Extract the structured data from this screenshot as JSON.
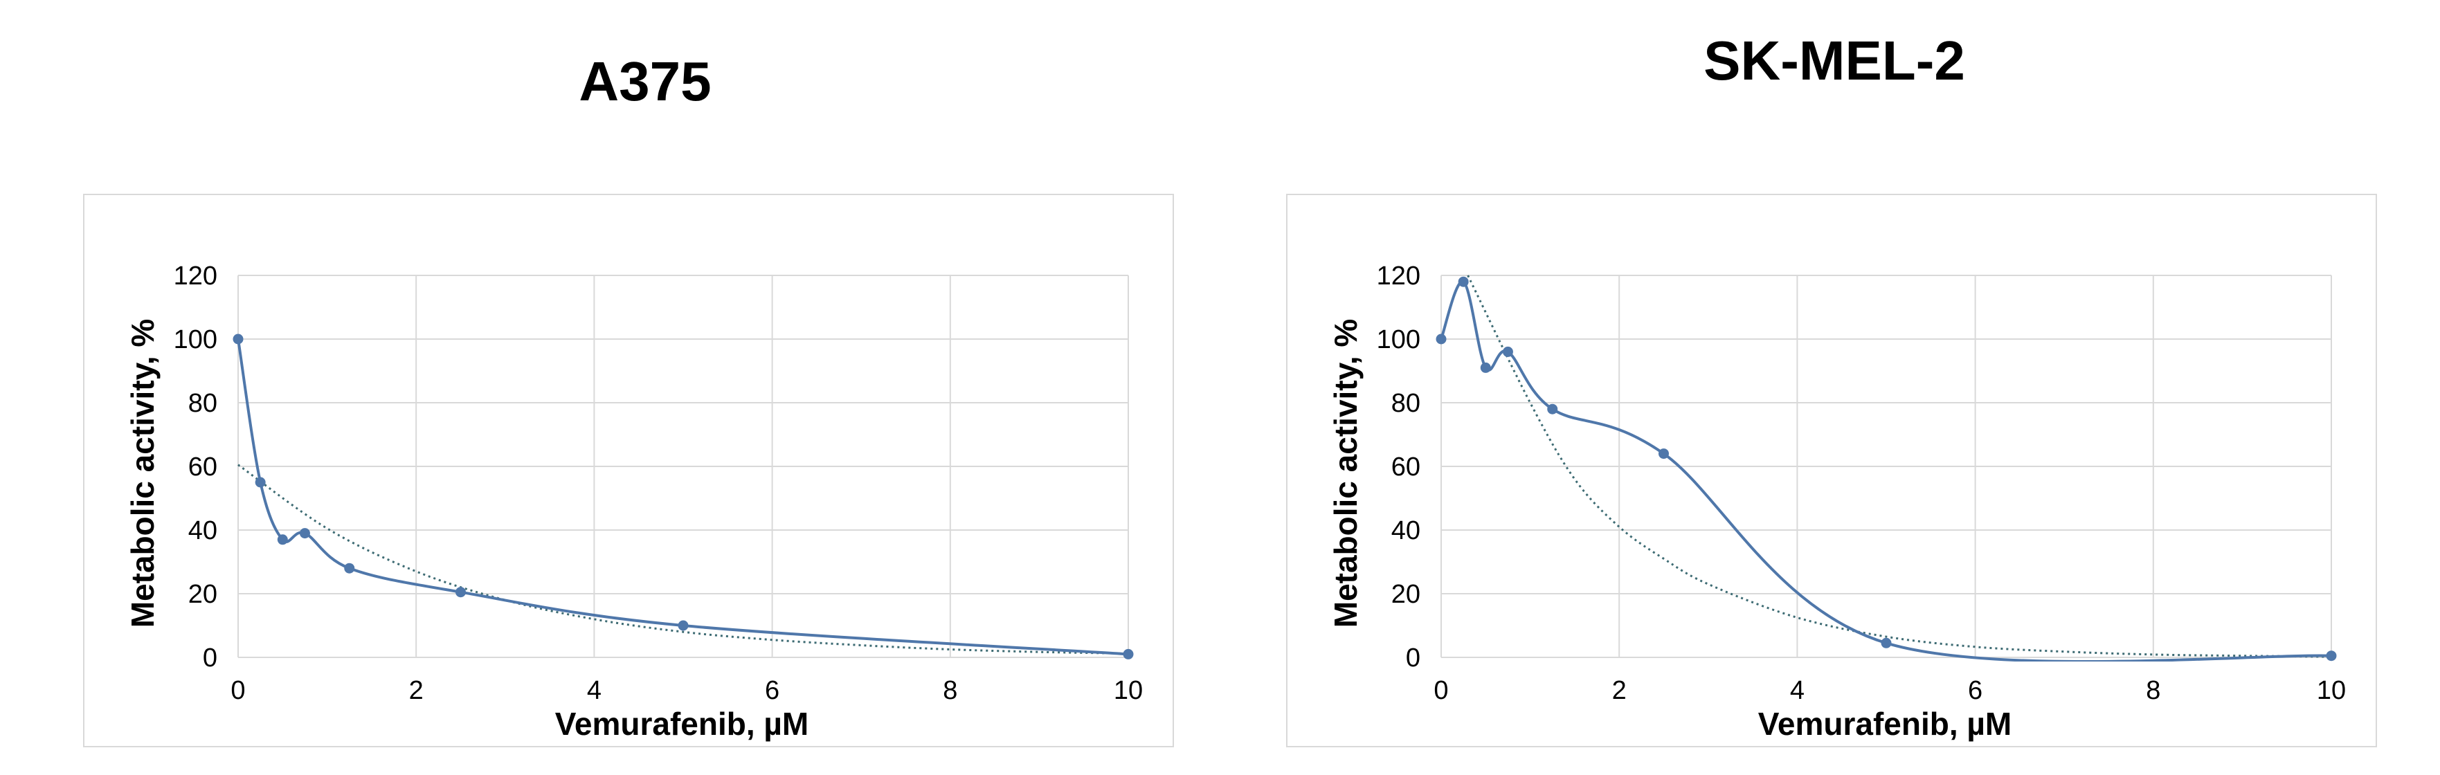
{
  "chart_data": [
    {
      "type": "line",
      "title": "A375",
      "xlabel": "Vemurafenib, µM",
      "ylabel": "Metabolic activity, %",
      "xlim": [
        0,
        10
      ],
      "ylim": [
        0,
        120
      ],
      "x_ticks": [
        "0",
        "2",
        "4",
        "6",
        "8",
        "10"
      ],
      "y_ticks": [
        "0",
        "20",
        "40",
        "60",
        "80",
        "100",
        "120"
      ],
      "grid": true,
      "colors": {
        "series": "#4f77aa",
        "trend": "#3d6b73"
      },
      "series": [
        {
          "x": [
            0,
            0.25,
            0.5,
            0.75,
            1.25,
            2.5,
            5,
            10
          ],
          "values": [
            100,
            55,
            37,
            39,
            28,
            20.5,
            10,
            1
          ]
        }
      ],
      "trendline": {
        "x": [
          0,
          1,
          2,
          3,
          4,
          5,
          6,
          7,
          8,
          9,
          10
        ],
        "values": [
          60.5,
          40.5,
          27,
          18,
          12,
          8,
          5.5,
          3.8,
          2.5,
          1.7,
          1.2
        ]
      }
    },
    {
      "type": "line",
      "title": "SK-MEL-2",
      "xlabel": "Vemurafenib, µM",
      "ylabel": "Metabolic activity, %",
      "xlim": [
        0,
        10
      ],
      "ylim": [
        0,
        120
      ],
      "x_ticks": [
        "0",
        "2",
        "4",
        "6",
        "8",
        "10"
      ],
      "y_ticks": [
        "0",
        "20",
        "40",
        "60",
        "80",
        "100",
        "120"
      ],
      "grid": true,
      "colors": {
        "series": "#4f77aa",
        "trend": "#3d6b73"
      },
      "series": [
        {
          "x": [
            0,
            0.25,
            0.5,
            0.75,
            1.25,
            2.5,
            5,
            10
          ],
          "values": [
            100,
            118,
            91,
            96,
            78,
            64,
            4.5,
            0.5
          ]
        }
      ],
      "trendline": {
        "x": [
          0.3,
          1,
          1.5,
          2,
          2.5,
          3,
          4,
          5,
          6,
          7,
          8,
          9,
          10
        ],
        "values": [
          120,
          80,
          56,
          41,
          31,
          23,
          12.5,
          6.5,
          3.3,
          1.8,
          0.9,
          0.5,
          0.2
        ]
      }
    }
  ]
}
